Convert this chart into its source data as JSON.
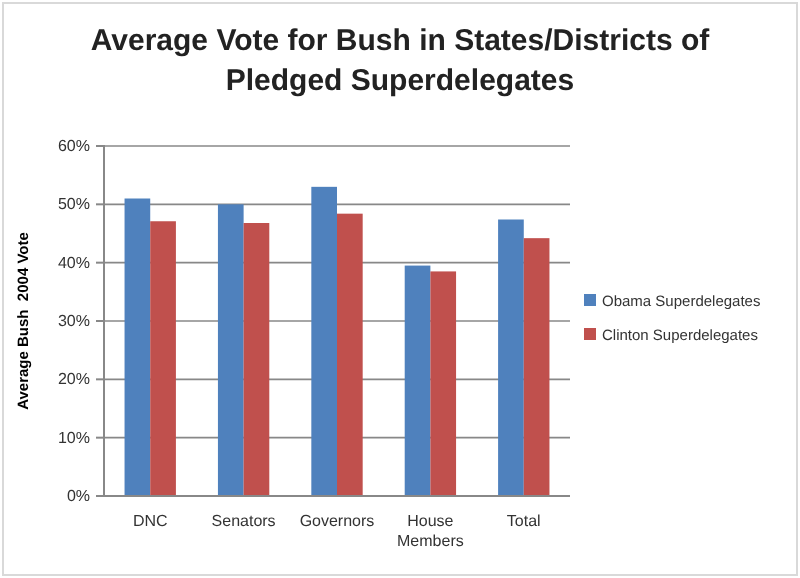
{
  "chart_data": {
    "type": "bar",
    "title": "Average Vote for Bush in States/Districts of Pledged Superdelegates",
    "ylabel": "Average Bush  2004 Vote",
    "categories": [
      "DNC",
      "Senators",
      "Governors",
      "House Members",
      "Total"
    ],
    "series": [
      {
        "name": "Obama Superdelegates",
        "color": "#4f81bd",
        "values": [
          51.0,
          50.0,
          53.0,
          39.5,
          47.4
        ]
      },
      {
        "name": "Clinton Superdelegates",
        "color": "#c0504d",
        "values": [
          47.1,
          46.8,
          48.4,
          38.5,
          44.2
        ]
      }
    ],
    "ylim": [
      0,
      60
    ],
    "yticks": [
      {
        "value": 0,
        "label": "0%"
      },
      {
        "value": 10,
        "label": "10%"
      },
      {
        "value": 20,
        "label": "20%"
      },
      {
        "value": 30,
        "label": "30%"
      },
      {
        "value": 40,
        "label": "40%"
      },
      {
        "value": 50,
        "label": "50%"
      },
      {
        "value": 60,
        "label": "60%"
      }
    ],
    "grid": "y",
    "legend": "right"
  }
}
